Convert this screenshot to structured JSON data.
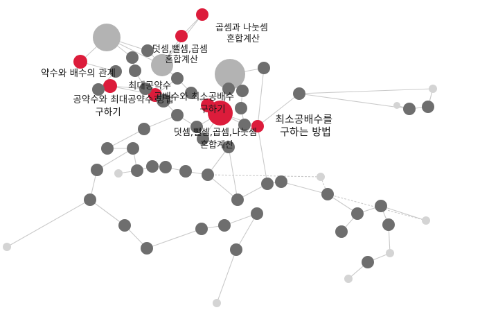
{
  "graph": {
    "highlight_color": "#dc1c3b",
    "node_color": "#6e6e6e",
    "edge_color": "#c9c9c9",
    "labels": {
      "gop_nanut": [
        "곱셈과 나눗셈",
        "혼합계산"
      ],
      "deot_ppael_gop": [
        "덧셈,뺄셈,곱셈",
        "혼합계산"
      ],
      "yaksu_baesu": [
        "약수와 배수의 관계"
      ],
      "choedae_gongyaksu": [
        "최대공약수"
      ],
      "gongyaksu_choedae": [
        "공약수와 최대공약수 방법"
      ],
      "gongyaksu_guhagi": [
        "구하기"
      ],
      "gongbaesu_choeso": [
        "공배수와 최소공배수"
      ],
      "guhagi2": [
        "구하기"
      ],
      "choeso_gongbaesu_method": [
        "최소공배수를",
        "구하는 방법"
      ],
      "deot_ppael_gop_nanut": [
        "덧셈,뺄셈,곱셈,나눗셈",
        "혼합계산"
      ]
    }
  }
}
